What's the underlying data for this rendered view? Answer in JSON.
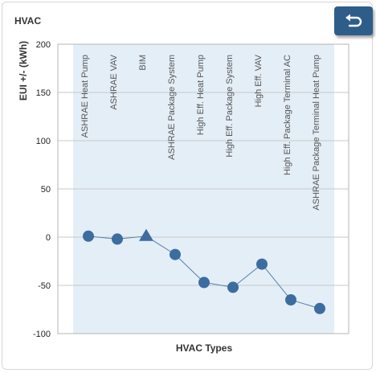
{
  "panel": {
    "title": "HVAC"
  },
  "icons": {
    "back": "undo-arrow-icon"
  },
  "colors": {
    "marker": "#3d6c9f",
    "line": "#5a7fa8",
    "plot_band": "#e3eef7",
    "grid": "#c8c8c8",
    "button": "#2f5d8a"
  },
  "chart_data": {
    "type": "line",
    "xlabel": "HVAC Types",
    "ylabel": "EUI +/- (kWh)",
    "ylim": [
      -100,
      200
    ],
    "yticks": [
      200,
      150,
      100,
      50,
      0,
      -50,
      -100
    ],
    "categories": [
      "ASHRAE Heat Pump",
      "ASHRAE VAV",
      "BIM",
      "ASHRAE Package System",
      "High Eff. Heat Pump",
      "High Eff. Package System",
      "High Eff. VAV",
      "High Eff. Package Terminal AC",
      "ASHRAE Package Terminal Heat Pump"
    ],
    "series": [
      {
        "values": [
          1,
          -2,
          1,
          -18,
          -47,
          -52,
          -28,
          -65,
          -74
        ],
        "markers": [
          "circle",
          "circle",
          "triangle",
          "circle",
          "circle",
          "circle",
          "circle",
          "circle",
          "circle"
        ]
      }
    ],
    "grid": true
  }
}
